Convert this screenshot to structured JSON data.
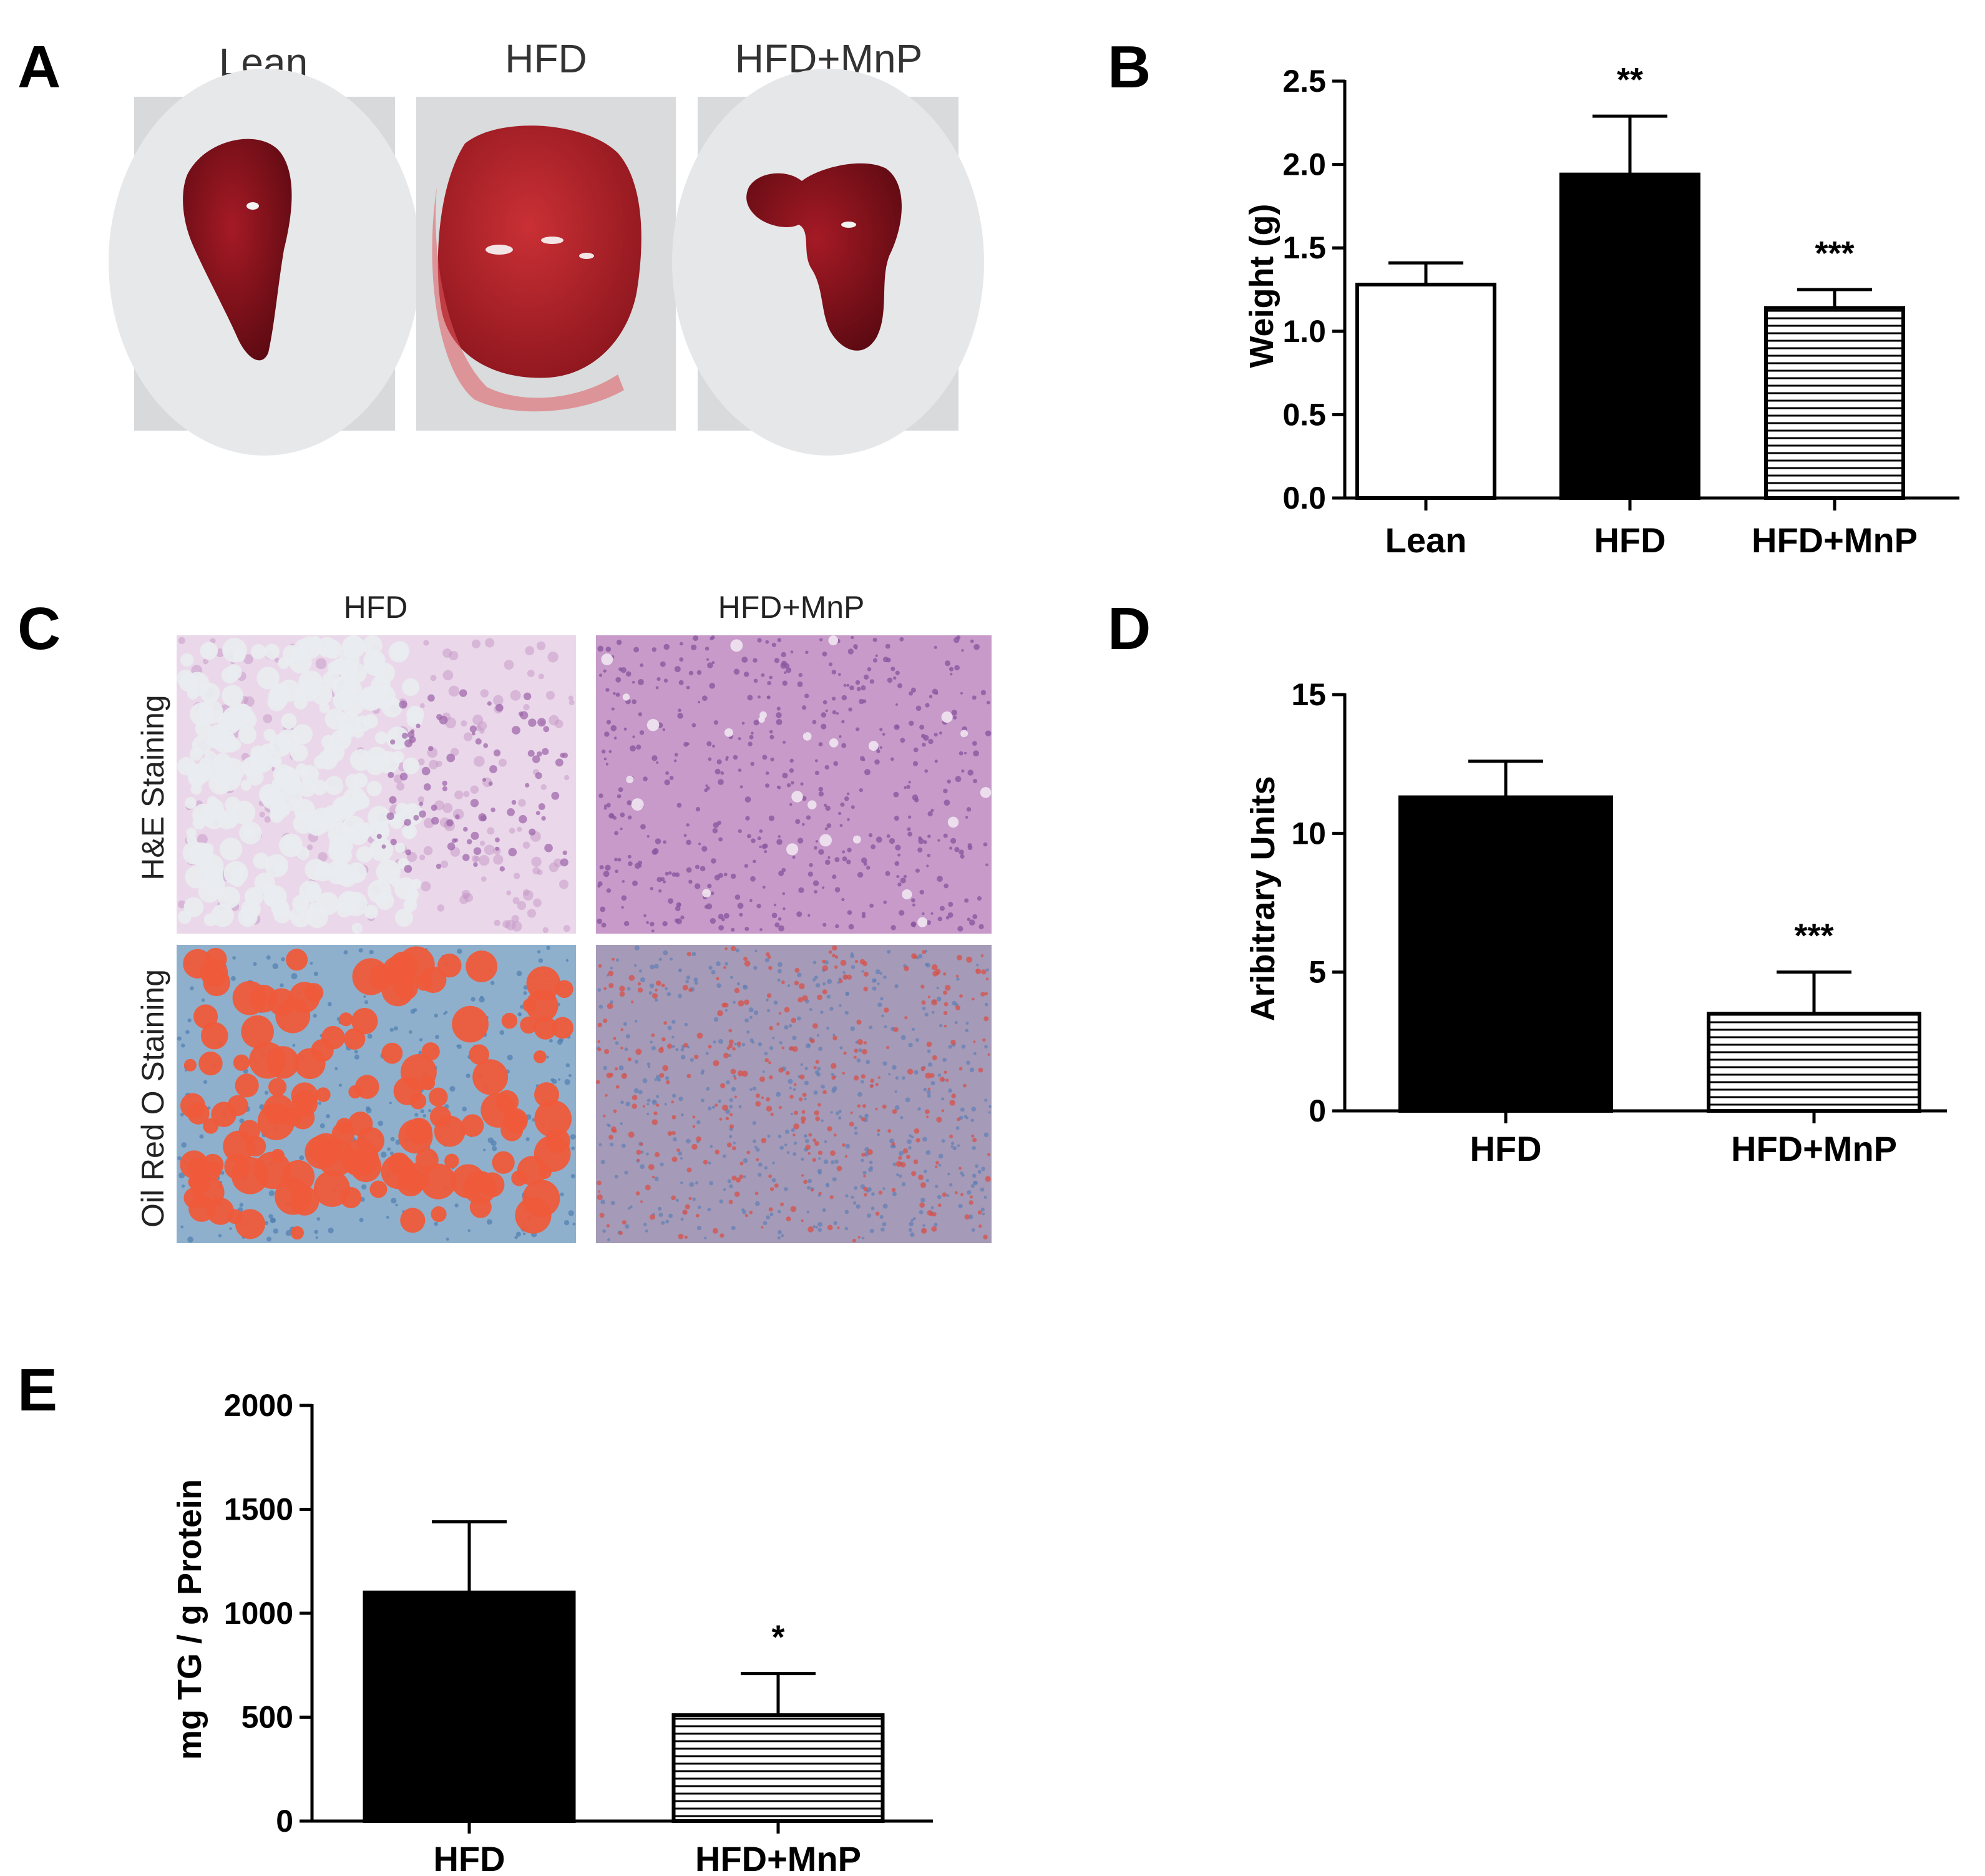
{
  "panels": {
    "a": {
      "letter": "A",
      "labels": [
        "Lean",
        "HFD",
        "HFD+MnP"
      ]
    },
    "b": {
      "letter": "B"
    },
    "c": {
      "letter": "C",
      "col_labels": [
        "HFD",
        "HFD+MnP"
      ],
      "row_labels": [
        "H&E Staining",
        "Oil Red O Staining"
      ]
    },
    "d": {
      "letter": "D"
    },
    "e": {
      "letter": "E"
    }
  },
  "colors": {
    "bar_solid": "#000000",
    "bar_open": "#ffffff",
    "axis": "#000000",
    "photo_bg": "#dcdee0",
    "liver": "#7a1018",
    "he_background": "#c79ac9",
    "he_vacuole": "#e9ecef",
    "oro_background": "#8aa9c6",
    "oro_droplet": "#ef5a3a"
  },
  "chart_data": [
    {
      "panel": "B",
      "type": "bar",
      "categories": [
        "Lean",
        "HFD",
        "HFD+MnP"
      ],
      "values": [
        1.28,
        1.94,
        1.14
      ],
      "errors": [
        0.13,
        0.35,
        0.11
      ],
      "fills": [
        "open",
        "solid",
        "hatched"
      ],
      "significance": [
        "",
        "**",
        "***"
      ],
      "ylabel": "Weight (g)",
      "ylim": [
        0,
        2.5
      ],
      "yticks": [
        0.0,
        0.5,
        1.0,
        1.5,
        2.0,
        2.5
      ],
      "ytick_labels": [
        "0.0",
        "0.5",
        "1.0",
        "1.5",
        "2.0",
        "2.5"
      ]
    },
    {
      "panel": "D",
      "type": "bar",
      "categories": [
        "HFD",
        "HFD+MnP"
      ],
      "values": [
        11.3,
        3.5
      ],
      "errors": [
        1.3,
        1.5
      ],
      "fills": [
        "solid",
        "hatched"
      ],
      "significance": [
        "",
        "***"
      ],
      "ylabel": "Aribitrary Units",
      "ylim": [
        0,
        15
      ],
      "yticks": [
        0,
        5,
        10,
        15
      ],
      "ytick_labels": [
        "0",
        "5",
        "10",
        "15"
      ]
    },
    {
      "panel": "E",
      "type": "bar",
      "categories": [
        "HFD",
        "HFD+MnP"
      ],
      "values": [
        1100,
        510
      ],
      "errors": [
        340,
        200
      ],
      "fills": [
        "solid",
        "hatched"
      ],
      "significance": [
        "",
        "*"
      ],
      "ylabel": "mg TG / g Protein",
      "ylim": [
        0,
        2000
      ],
      "yticks": [
        0,
        500,
        1000,
        1500,
        2000
      ],
      "ytick_labels": [
        "0",
        "500",
        "1000",
        "1500",
        "2000"
      ]
    }
  ]
}
